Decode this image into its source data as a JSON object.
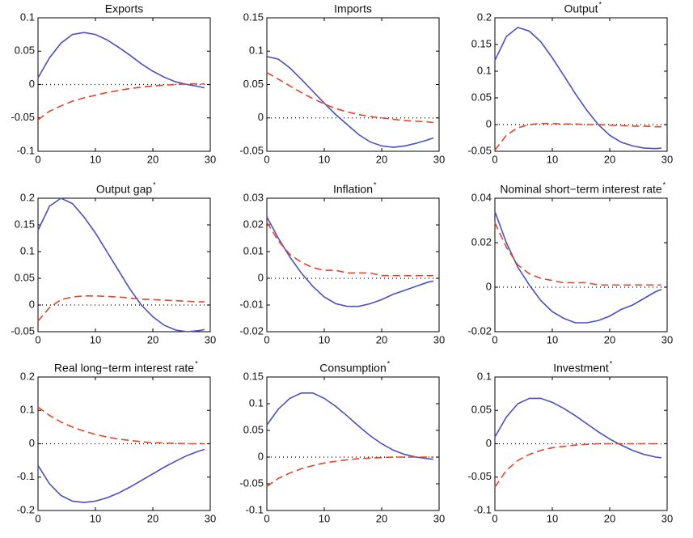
{
  "chart_data": [
    {
      "type": "line",
      "title": "Exports",
      "x": [
        0,
        2,
        4,
        6,
        8,
        10,
        12,
        14,
        16,
        18,
        20,
        22,
        24,
        26,
        28,
        29
      ],
      "xlim": [
        0,
        30
      ],
      "xticks": [
        0,
        10,
        20,
        30
      ],
      "ylim": [
        -0.1,
        0.1
      ],
      "yticks": [
        -0.1,
        -0.05,
        0,
        0.05,
        0.1
      ],
      "series": [
        {
          "color": "#4b4fc0",
          "linestyle": "solid",
          "values": [
            0.01,
            0.04,
            0.062,
            0.075,
            0.078,
            0.075,
            0.067,
            0.056,
            0.044,
            0.031,
            0.02,
            0.011,
            0.004,
            0.0,
            -0.003,
            -0.005
          ]
        },
        {
          "color": "#e2462a",
          "linestyle": "dashed",
          "values": [
            -0.053,
            -0.04,
            -0.032,
            -0.025,
            -0.02,
            -0.016,
            -0.012,
            -0.009,
            -0.006,
            -0.004,
            -0.002,
            -0.001,
            0,
            0.001,
            0.001,
            0.001
          ]
        }
      ]
    },
    {
      "type": "line",
      "title": "Imports",
      "x": [
        0,
        2,
        4,
        6,
        8,
        10,
        12,
        14,
        16,
        18,
        20,
        22,
        24,
        26,
        28,
        29
      ],
      "xlim": [
        0,
        30
      ],
      "xticks": [
        0,
        10,
        20,
        30
      ],
      "ylim": [
        -0.05,
        0.15
      ],
      "yticks": [
        -0.05,
        0,
        0.05,
        0.1,
        0.15
      ],
      "series": [
        {
          "color": "#4b4fc0",
          "linestyle": "solid",
          "values": [
            0.092,
            0.088,
            0.075,
            0.058,
            0.04,
            0.022,
            0.005,
            -0.01,
            -0.025,
            -0.036,
            -0.042,
            -0.044,
            -0.042,
            -0.038,
            -0.033,
            -0.03
          ]
        },
        {
          "color": "#e2462a",
          "linestyle": "dashed",
          "values": [
            0.068,
            0.058,
            0.048,
            0.038,
            0.029,
            0.021,
            0.014,
            0.009,
            0.005,
            0.002,
            0,
            -0.002,
            -0.004,
            -0.005,
            -0.006,
            -0.007
          ]
        }
      ]
    },
    {
      "type": "line",
      "title": "Output",
      "title_superscript": "*",
      "x": [
        0,
        2,
        4,
        6,
        8,
        10,
        12,
        14,
        16,
        18,
        20,
        22,
        24,
        26,
        28,
        29
      ],
      "xlim": [
        0,
        30
      ],
      "xticks": [
        0,
        10,
        20,
        30
      ],
      "ylim": [
        -0.05,
        0.2
      ],
      "yticks": [
        -0.05,
        0,
        0.05,
        0.1,
        0.15,
        0.2
      ],
      "series": [
        {
          "color": "#4b4fc0",
          "linestyle": "solid",
          "values": [
            0.12,
            0.165,
            0.182,
            0.175,
            0.155,
            0.125,
            0.092,
            0.058,
            0.027,
            0.0,
            -0.02,
            -0.033,
            -0.04,
            -0.044,
            -0.045,
            -0.044
          ]
        },
        {
          "color": "#e2462a",
          "linestyle": "dashed",
          "values": [
            -0.048,
            -0.02,
            -0.006,
            0.0,
            0.002,
            0.002,
            0.001,
            0.001,
            0.0,
            0.0,
            -0.001,
            -0.002,
            -0.003,
            -0.003,
            -0.004,
            -0.004
          ]
        }
      ]
    },
    {
      "type": "line",
      "title": "Output gap",
      "title_superscript": "*",
      "x": [
        0,
        2,
        4,
        6,
        8,
        10,
        12,
        14,
        16,
        18,
        20,
        22,
        24,
        26,
        28,
        29
      ],
      "xlim": [
        0,
        30
      ],
      "xticks": [
        0,
        10,
        20,
        30
      ],
      "ylim": [
        -0.05,
        0.2
      ],
      "yticks": [
        -0.05,
        0,
        0.05,
        0.1,
        0.15,
        0.2
      ],
      "series": [
        {
          "color": "#4b4fc0",
          "linestyle": "solid",
          "values": [
            0.14,
            0.185,
            0.2,
            0.19,
            0.165,
            0.135,
            0.1,
            0.065,
            0.03,
            0.0,
            -0.022,
            -0.038,
            -0.047,
            -0.05,
            -0.048,
            -0.046
          ]
        },
        {
          "color": "#e2462a",
          "linestyle": "dashed",
          "values": [
            -0.03,
            -0.005,
            0.01,
            0.015,
            0.017,
            0.017,
            0.016,
            0.015,
            0.013,
            0.011,
            0.01,
            0.009,
            0.008,
            0.007,
            0.006,
            0.006
          ]
        }
      ]
    },
    {
      "type": "line",
      "title": "Inflation",
      "title_superscript": "*",
      "x": [
        0,
        2,
        4,
        6,
        8,
        10,
        12,
        14,
        16,
        18,
        20,
        22,
        24,
        26,
        28,
        29
      ],
      "xlim": [
        0,
        30
      ],
      "xticks": [
        0,
        10,
        20,
        30
      ],
      "ylim": [
        -0.02,
        0.03
      ],
      "yticks": [
        -0.02,
        -0.01,
        0,
        0.01,
        0.02,
        0.03
      ],
      "series": [
        {
          "color": "#4b4fc0",
          "linestyle": "solid",
          "values": [
            0.023,
            0.015,
            0.008,
            0.002,
            -0.003,
            -0.007,
            -0.0095,
            -0.0105,
            -0.0105,
            -0.0095,
            -0.008,
            -0.006,
            -0.0045,
            -0.003,
            -0.0015,
            -0.001
          ]
        },
        {
          "color": "#e2462a",
          "linestyle": "dashed",
          "values": [
            0.021,
            0.014,
            0.009,
            0.006,
            0.004,
            0.003,
            0.003,
            0.002,
            0.002,
            0.002,
            0.001,
            0.001,
            0.001,
            0.001,
            0.001,
            0.001
          ]
        }
      ]
    },
    {
      "type": "line",
      "title": "Nominal short−term interest rate",
      "title_superscript": "*",
      "x": [
        0,
        2,
        4,
        6,
        8,
        10,
        12,
        14,
        16,
        18,
        20,
        22,
        24,
        26,
        28,
        29
      ],
      "xlim": [
        0,
        30
      ],
      "xticks": [
        0,
        10,
        20,
        30
      ],
      "ylim": [
        -0.02,
        0.04
      ],
      "yticks": [
        -0.02,
        0,
        0.02,
        0.04
      ],
      "series": [
        {
          "color": "#4b4fc0",
          "linestyle": "solid",
          "values": [
            0.034,
            0.02,
            0.009,
            0.001,
            -0.006,
            -0.011,
            -0.014,
            -0.016,
            -0.016,
            -0.015,
            -0.013,
            -0.01,
            -0.008,
            -0.005,
            -0.002,
            -0.001
          ]
        },
        {
          "color": "#e2462a",
          "linestyle": "dashed",
          "values": [
            0.029,
            0.018,
            0.01,
            0.006,
            0.004,
            0.003,
            0.002,
            0.002,
            0.002,
            0.001,
            0.001,
            0.001,
            0.001,
            0.001,
            0.001,
            0.001
          ]
        }
      ]
    },
    {
      "type": "line",
      "title": "Real long−term interest rate",
      "title_superscript": "*",
      "x": [
        0,
        2,
        4,
        6,
        8,
        10,
        12,
        14,
        16,
        18,
        20,
        22,
        24,
        26,
        28,
        29
      ],
      "xlim": [
        0,
        30
      ],
      "xticks": [
        0,
        10,
        20,
        30
      ],
      "ylim": [
        -0.2,
        0.2
      ],
      "yticks": [
        -0.2,
        -0.1,
        0,
        0.1,
        0.2
      ],
      "series": [
        {
          "color": "#4b4fc0",
          "linestyle": "solid",
          "values": [
            -0.065,
            -0.12,
            -0.155,
            -0.172,
            -0.176,
            -0.172,
            -0.162,
            -0.148,
            -0.13,
            -0.11,
            -0.09,
            -0.07,
            -0.052,
            -0.035,
            -0.022,
            -0.017
          ]
        },
        {
          "color": "#e2462a",
          "linestyle": "dashed",
          "values": [
            0.11,
            0.085,
            0.065,
            0.05,
            0.038,
            0.028,
            0.02,
            0.014,
            0.01,
            0.006,
            0.003,
            0.002,
            0.001,
            0,
            0,
            0
          ]
        }
      ]
    },
    {
      "type": "line",
      "title": "Consumption",
      "title_superscript": "*",
      "x": [
        0,
        2,
        4,
        6,
        8,
        10,
        12,
        14,
        16,
        18,
        20,
        22,
        24,
        26,
        28,
        29
      ],
      "xlim": [
        0,
        30
      ],
      "xticks": [
        0,
        10,
        20,
        30
      ],
      "ylim": [
        -0.1,
        0.15
      ],
      "yticks": [
        -0.1,
        -0.05,
        0,
        0.05,
        0.1,
        0.15
      ],
      "series": [
        {
          "color": "#4b4fc0",
          "linestyle": "solid",
          "values": [
            0.06,
            0.09,
            0.11,
            0.12,
            0.12,
            0.11,
            0.095,
            0.077,
            0.058,
            0.04,
            0.025,
            0.013,
            0.005,
            0.0,
            -0.003,
            -0.004
          ]
        },
        {
          "color": "#e2462a",
          "linestyle": "dashed",
          "values": [
            -0.055,
            -0.04,
            -0.03,
            -0.022,
            -0.016,
            -0.011,
            -0.008,
            -0.005,
            -0.003,
            -0.002,
            -0.001,
            0,
            0,
            0,
            0,
            0
          ]
        }
      ]
    },
    {
      "type": "line",
      "title": "Investment",
      "title_superscript": "*",
      "x": [
        0,
        2,
        4,
        6,
        8,
        10,
        12,
        14,
        16,
        18,
        20,
        22,
        24,
        26,
        28,
        29
      ],
      "xlim": [
        0,
        30
      ],
      "xticks": [
        0,
        10,
        20,
        30
      ],
      "ylim": [
        -0.1,
        0.1
      ],
      "yticks": [
        -0.1,
        -0.05,
        0,
        0.05,
        0.1
      ],
      "series": [
        {
          "color": "#4b4fc0",
          "linestyle": "solid",
          "values": [
            0.01,
            0.04,
            0.06,
            0.068,
            0.068,
            0.062,
            0.053,
            0.042,
            0.03,
            0.018,
            0.007,
            -0.002,
            -0.01,
            -0.016,
            -0.02,
            -0.021
          ]
        },
        {
          "color": "#e2462a",
          "linestyle": "dashed",
          "values": [
            -0.065,
            -0.04,
            -0.025,
            -0.016,
            -0.01,
            -0.006,
            -0.004,
            -0.002,
            -0.001,
            0,
            0,
            0,
            0,
            0,
            0,
            0
          ]
        }
      ]
    }
  ]
}
